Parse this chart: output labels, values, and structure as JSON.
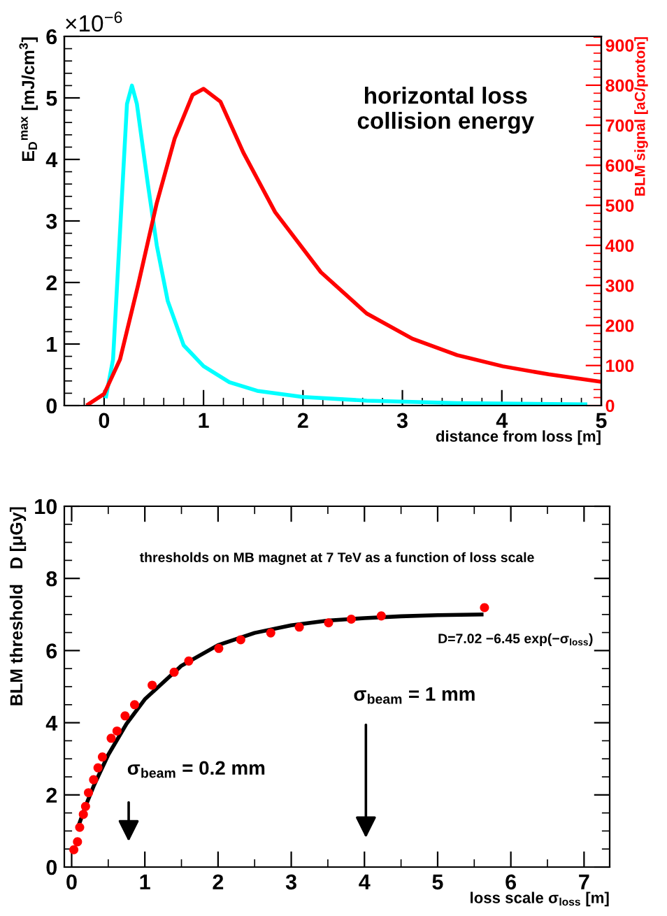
{
  "chart_data": [
    {
      "type": "line",
      "xlabel": "distance from loss [m]",
      "ylabel": "E$_{D}$$^{max}$ [mJ/cm$^{3}$]",
      "y2label": "BLM signal [aC/proton]",
      "annotations": [
        "×10$^{−6}$",
        "horizontal loss\ncollision energy"
      ],
      "xlim": [
        -0.4,
        5
      ],
      "xticks": [
        0,
        1,
        2,
        3,
        4,
        5
      ],
      "ylim": [
        0,
        6
      ],
      "yticks": [
        0,
        1,
        2,
        3,
        4,
        5,
        6
      ],
      "y2lim": [
        0,
        922
      ],
      "y2ticks": [
        0,
        100,
        200,
        300,
        400,
        500,
        600,
        700,
        800,
        900
      ],
      "grid": false,
      "legend": false,
      "marker": "none",
      "line_style": "solid",
      "series": [
        {
          "color": "#00ffff",
          "x": [
            0.02,
            0.09,
            0.23,
            0.28,
            0.33,
            0.44,
            0.53,
            0.64,
            0.8,
            1.0,
            1.26,
            1.54,
            2.0,
            2.64,
            3.55,
            4.84
          ],
          "values": [
            0.15,
            0.75,
            4.9,
            5.2,
            4.9,
            3.6,
            2.6,
            1.7,
            0.98,
            0.64,
            0.38,
            0.24,
            0.14,
            0.08,
            0.04,
            0.02
          ]
        },
        {
          "color": "#ff0000",
          "axis": "y2",
          "x": [
            -0.16,
            0,
            0.16,
            0.34,
            0.53,
            0.71,
            0.89,
            1.0,
            1.17,
            1.4,
            1.72,
            2.18,
            2.64,
            3.1,
            3.55,
            4.01,
            4.47,
            4.98
          ],
          "values": [
            3,
            29,
            115,
            299,
            506,
            667,
            776,
            791,
            759,
            632,
            483,
            333,
            230,
            167,
            126,
            98,
            78,
            60
          ]
        }
      ]
    },
    {
      "type": "scatter",
      "xlabel": "loss scale σ$_{loss}$ [m]",
      "ylabel": "BLM threshold   D [μGy]",
      "annotations": [
        "thresholds on MB magnet at 7 TeV as a function of loss scale",
        "D=7.02 −6.45 exp(−σ$_{loss}$)",
        "σ$_{beam}$ = 0.2 mm",
        "σ$_{beam}$ = 1 mm"
      ],
      "xlim": [
        -0.1,
        7.35
      ],
      "xticks": [
        0,
        1,
        2,
        3,
        4,
        5,
        6,
        7
      ],
      "ylim": [
        0,
        10
      ],
      "yticks": [
        0,
        2,
        4,
        6,
        8,
        10
      ],
      "grid": false,
      "legend": false,
      "marker": "circle",
      "series": [
        {
          "color": "#ff0000",
          "x": [
            0.03,
            0.08,
            0.11,
            0.16,
            0.19,
            0.23,
            0.3,
            0.36,
            0.42,
            0.54,
            0.62,
            0.73,
            0.86,
            1.1,
            1.4,
            1.6,
            2.01,
            2.31,
            2.72,
            3.11,
            3.51,
            3.82,
            4.23,
            5.64
          ],
          "values": [
            0.48,
            0.7,
            1.1,
            1.46,
            1.68,
            2.06,
            2.42,
            2.75,
            3.05,
            3.57,
            3.77,
            4.19,
            4.5,
            5.04,
            5.4,
            5.71,
            6.06,
            6.3,
            6.49,
            6.65,
            6.77,
            6.87,
            6.96,
            7.19
          ]
        },
        {
          "type": "line",
          "color": "#000000",
          "marker": "none",
          "line_style": "solid",
          "x": [
            0.1,
            0.2,
            0.3,
            0.5,
            0.75,
            1,
            1.5,
            2,
            2.5,
            3,
            3.5,
            4,
            4.5,
            5,
            5.6
          ],
          "values": [
            1.18,
            1.74,
            2.24,
            3.11,
            3.97,
            4.65,
            5.58,
            6.15,
            6.49,
            6.7,
            6.83,
            6.9,
            6.95,
            6.98,
            7.0
          ]
        }
      ]
    }
  ]
}
